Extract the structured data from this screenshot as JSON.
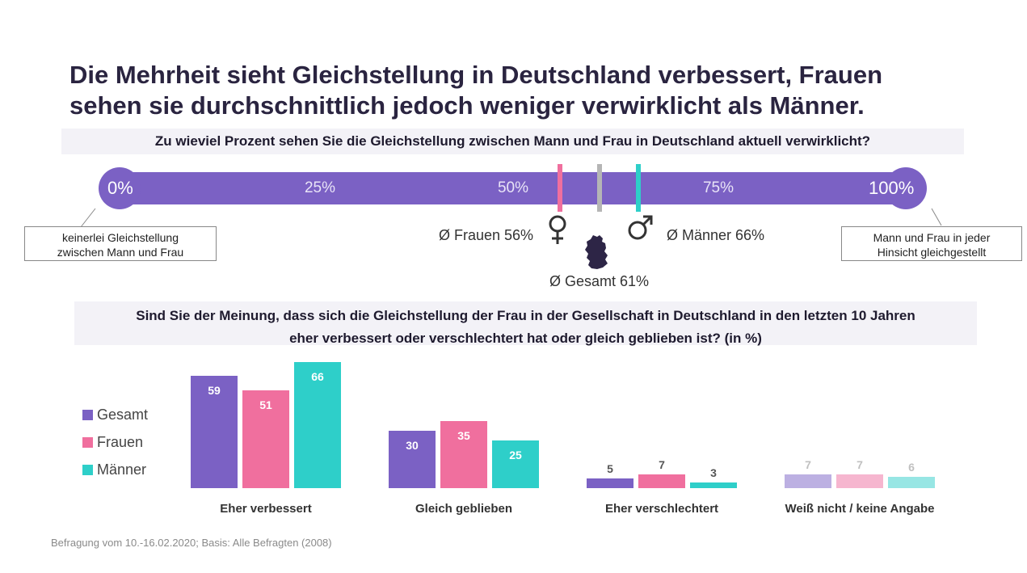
{
  "title_line1": "Die Mehrheit sieht Gleichstellung in Deutschland verbessert, Frauen",
  "title_line2": "sehen sie durchschnittlich jedoch weniger verwirklicht als Männer.",
  "question1": "Zu wieviel Prozent sehen Sie die Gleichstellung zwischen Mann und Frau in Deutschland aktuell verwirklicht?",
  "scale": {
    "label_0": "0%",
    "label_100": "100%",
    "ticks": [
      "25%",
      "50%",
      "75%"
    ],
    "left_note_line1": "keinerlei Gleichstellung",
    "left_note_line2": "zwischen Mann und Frau",
    "right_note_line1": "Mann und Frau in jeder",
    "right_note_line2": "Hinsicht gleichgestellt",
    "frauen_label": "Ø Frauen 56%",
    "maenner_label": "Ø Männer 66%",
    "gesamt_label": "Ø Gesamt 61%",
    "frauen_value": 56,
    "maenner_value": 66,
    "gesamt_value": 61
  },
  "question2_line1": "Sind Sie der Meinung, dass sich die Gleichstellung der Frau in der Gesellschaft in Deutschland in den letzten 10 Jahren",
  "question2_line2": "eher verbessert oder verschlechtert hat oder gleich geblieben ist? (in %)",
  "colors": {
    "gesamt": "#7b61c4",
    "frauen": "#f06f9e",
    "maenner": "#2ecfc9",
    "gesamt_light": "#bcb0e2",
    "frauen_light": "#f6b6cf",
    "maenner_light": "#97e6e4"
  },
  "chart_data": {
    "type": "bar",
    "categories": [
      "Eher verbessert",
      "Gleich geblieben",
      "Eher verschlechtert",
      "Weiß nicht / keine Angabe"
    ],
    "series": [
      {
        "name": "Gesamt",
        "values": [
          59,
          30,
          5,
          7
        ]
      },
      {
        "name": "Frauen",
        "values": [
          51,
          35,
          7,
          7
        ]
      },
      {
        "name": "Männer",
        "values": [
          66,
          25,
          3,
          6
        ]
      }
    ],
    "ylim": [
      0,
      66
    ],
    "legend": "left"
  },
  "footer": "Befragung vom 10.-16.02.2020;  Basis: Alle Befragten (2008)"
}
